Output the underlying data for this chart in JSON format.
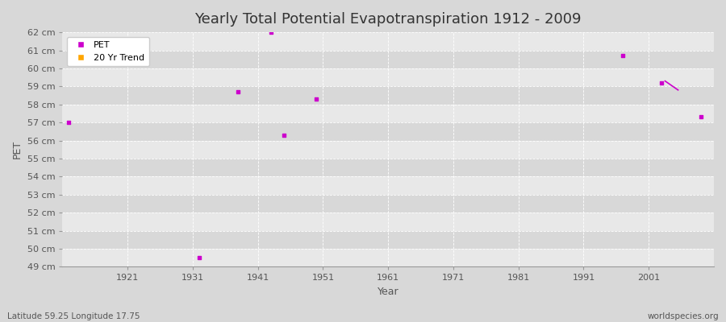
{
  "title": "Yearly Total Potential Evapotranspiration 1912 - 2009",
  "xlabel": "Year",
  "ylabel": "PET",
  "subtitle_left": "Latitude 59.25 Longitude 17.75",
  "subtitle_right": "worldspecies.org",
  "pet_years": [
    1912,
    1932,
    1938,
    1943,
    1945,
    1950,
    1997,
    2003,
    2009
  ],
  "pet_values": [
    57.0,
    49.5,
    58.7,
    62.0,
    56.3,
    58.3,
    60.7,
    59.2,
    57.3
  ],
  "trend_x": [
    2003.5,
    2005.5
  ],
  "trend_y": [
    59.3,
    58.8
  ],
  "ylim": [
    49,
    62
  ],
  "xlim": [
    1911,
    2011
  ],
  "yticks": [
    49,
    50,
    51,
    52,
    53,
    54,
    55,
    56,
    57,
    58,
    59,
    60,
    61,
    62
  ],
  "xticks": [
    1921,
    1931,
    1941,
    1951,
    1961,
    1971,
    1981,
    1991,
    2001
  ],
  "pet_color": "#cc00cc",
  "trend_color": "#ffa500",
  "bg_color": "#d8d8d8",
  "plot_bg_color_light": "#e8e8e8",
  "plot_bg_color_dark": "#d8d8d8",
  "grid_color": "#ffffff",
  "title_color": "#333333",
  "label_color": "#555555",
  "tick_color": "#777777"
}
